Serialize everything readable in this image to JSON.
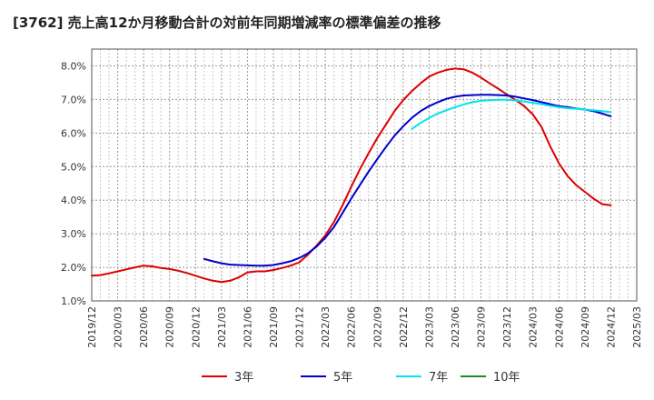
{
  "chart_data": {
    "type": "line",
    "title": "[3762]  売上高12か月移動合計の対前年同期増減率の標準偏差の推移",
    "xlabel": "",
    "ylabel": "",
    "ylim": [
      1.0,
      8.5
    ],
    "yticks": [
      "1.0%",
      "2.0%",
      "3.0%",
      "4.0%",
      "5.0%",
      "6.0%",
      "7.0%",
      "8.0%"
    ],
    "xticks": [
      "2019/12",
      "2020/03",
      "2020/06",
      "2020/09",
      "2020/12",
      "2021/03",
      "2021/06",
      "2021/09",
      "2021/12",
      "2022/03",
      "2022/06",
      "2022/09",
      "2022/12",
      "2023/03",
      "2023/06",
      "2023/09",
      "2023/12",
      "2024/03",
      "2024/06",
      "2024/09",
      "2024/12",
      "2025/03"
    ],
    "grid": true,
    "legend_position": "bottom",
    "series": [
      {
        "name": "3年",
        "color": "#dd0000",
        "x": [
          "2019/12",
          "2020/01",
          "2020/02",
          "2020/03",
          "2020/04",
          "2020/05",
          "2020/06",
          "2020/07",
          "2020/08",
          "2020/09",
          "2020/10",
          "2020/11",
          "2020/12",
          "2021/01",
          "2021/02",
          "2021/03",
          "2021/04",
          "2021/05",
          "2021/06",
          "2021/07",
          "2021/08",
          "2021/09",
          "2021/10",
          "2021/11",
          "2021/12",
          "2022/01",
          "2022/02",
          "2022/03",
          "2022/04",
          "2022/05",
          "2022/06",
          "2022/07",
          "2022/08",
          "2022/09",
          "2022/10",
          "2022/11",
          "2022/12",
          "2023/01",
          "2023/02",
          "2023/03",
          "2023/04",
          "2023/05",
          "2023/06",
          "2023/07",
          "2023/08",
          "2023/09",
          "2023/10",
          "2023/11",
          "2023/12",
          "2024/01",
          "2024/02",
          "2024/03",
          "2024/04",
          "2024/05",
          "2024/06",
          "2024/07",
          "2024/08",
          "2024/09",
          "2024/10",
          "2024/11",
          "2024/12"
        ],
        "values": [
          1.75,
          1.77,
          1.82,
          1.88,
          1.94,
          2.0,
          2.05,
          2.03,
          1.98,
          1.95,
          1.9,
          1.83,
          1.75,
          1.67,
          1.6,
          1.56,
          1.6,
          1.7,
          1.85,
          1.88,
          1.88,
          1.92,
          1.98,
          2.05,
          2.15,
          2.38,
          2.65,
          2.95,
          3.35,
          3.85,
          4.4,
          4.92,
          5.4,
          5.85,
          6.25,
          6.65,
          6.98,
          7.25,
          7.48,
          7.68,
          7.8,
          7.88,
          7.92,
          7.9,
          7.8,
          7.65,
          7.48,
          7.32,
          7.15,
          6.98,
          6.8,
          6.55,
          6.18,
          5.6,
          5.1,
          4.72,
          4.45,
          4.25,
          4.05,
          3.88,
          3.85
        ]
      },
      {
        "name": "5年",
        "color": "#0000cc",
        "x": [
          "2021/01",
          "2021/02",
          "2021/03",
          "2021/04",
          "2021/05",
          "2021/06",
          "2021/07",
          "2021/08",
          "2021/09",
          "2021/10",
          "2021/11",
          "2021/12",
          "2022/01",
          "2022/02",
          "2022/03",
          "2022/04",
          "2022/05",
          "2022/06",
          "2022/07",
          "2022/08",
          "2022/09",
          "2022/10",
          "2022/11",
          "2022/12",
          "2023/01",
          "2023/02",
          "2023/03",
          "2023/04",
          "2023/05",
          "2023/06",
          "2023/07",
          "2023/08",
          "2023/09",
          "2023/10",
          "2023/11",
          "2023/12",
          "2024/01",
          "2024/02",
          "2024/03",
          "2024/04",
          "2024/05",
          "2024/06",
          "2024/07",
          "2024/08",
          "2024/09",
          "2024/10",
          "2024/11",
          "2024/12"
        ],
        "values": [
          2.25,
          2.18,
          2.12,
          2.08,
          2.07,
          2.06,
          2.05,
          2.05,
          2.07,
          2.12,
          2.18,
          2.28,
          2.42,
          2.62,
          2.88,
          3.2,
          3.62,
          4.05,
          4.45,
          4.85,
          5.22,
          5.58,
          5.92,
          6.2,
          6.45,
          6.65,
          6.8,
          6.92,
          7.02,
          7.08,
          7.12,
          7.13,
          7.14,
          7.14,
          7.13,
          7.12,
          7.08,
          7.03,
          6.98,
          6.92,
          6.86,
          6.8,
          6.77,
          6.73,
          6.7,
          6.65,
          6.58,
          6.5
        ]
      },
      {
        "name": "7年",
        "color": "#00e5ee",
        "x": [
          "2023/01",
          "2023/02",
          "2023/03",
          "2023/04",
          "2023/05",
          "2023/06",
          "2023/07",
          "2023/08",
          "2023/09",
          "2023/10",
          "2023/11",
          "2023/12",
          "2024/01",
          "2024/02",
          "2024/03",
          "2024/04",
          "2024/05",
          "2024/06",
          "2024/07",
          "2024/08",
          "2024/09",
          "2024/10",
          "2024/11",
          "2024/12"
        ],
        "values": [
          6.12,
          6.3,
          6.45,
          6.58,
          6.68,
          6.77,
          6.85,
          6.92,
          6.96,
          6.98,
          6.99,
          6.99,
          6.97,
          6.94,
          6.9,
          6.86,
          6.81,
          6.77,
          6.74,
          6.72,
          6.7,
          6.68,
          6.65,
          6.62
        ]
      },
      {
        "name": "10年",
        "color": "#228b22",
        "x": [],
        "values": []
      }
    ]
  }
}
